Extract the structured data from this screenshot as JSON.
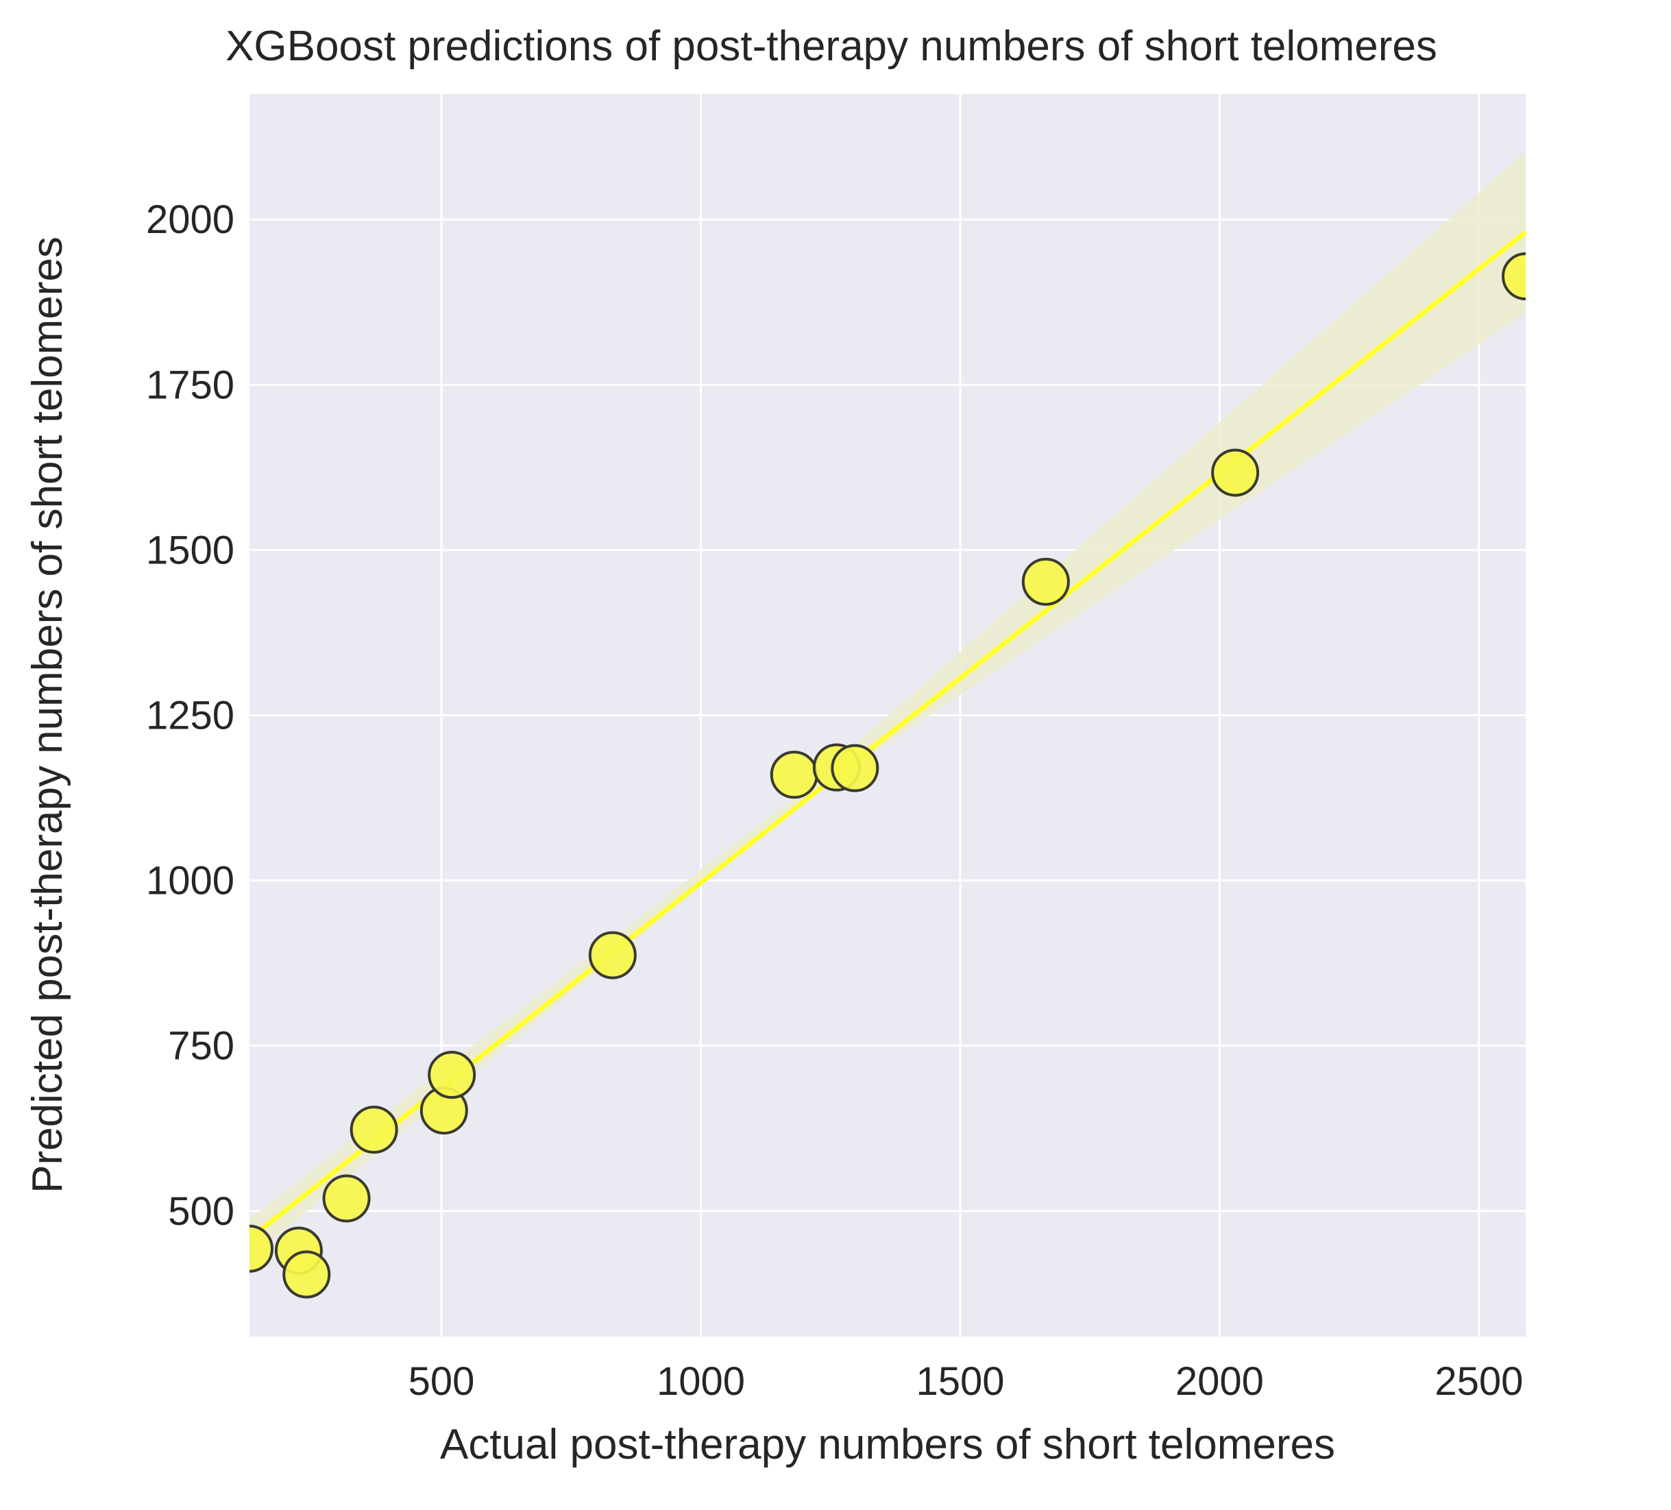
{
  "chart_data": {
    "type": "scatter",
    "title": "XGBoost predictions of post-therapy numbers of short telomeres",
    "xlabel": "Actual post-therapy numbers of short telomeres",
    "ylabel": "Predicted post-therapy numbers of short telomeres",
    "xlim": [
      130,
      2590
    ],
    "ylim": [
      310,
      2190
    ],
    "xticks": [
      500,
      1000,
      1500,
      2000,
      2500
    ],
    "yticks": [
      500,
      750,
      1000,
      1250,
      1500,
      1750,
      2000
    ],
    "grid": true,
    "legend": "none",
    "points": [
      {
        "x": 130,
        "y": 443
      },
      {
        "x": 225,
        "y": 440
      },
      {
        "x": 240,
        "y": 404
      },
      {
        "x": 317,
        "y": 519
      },
      {
        "x": 370,
        "y": 623
      },
      {
        "x": 505,
        "y": 652
      },
      {
        "x": 520,
        "y": 706
      },
      {
        "x": 830,
        "y": 887
      },
      {
        "x": 1180,
        "y": 1160
      },
      {
        "x": 1262,
        "y": 1171
      },
      {
        "x": 1297,
        "y": 1170
      },
      {
        "x": 1665,
        "y": 1452
      },
      {
        "x": 2030,
        "y": 1617
      },
      {
        "x": 2590,
        "y": 1914
      }
    ],
    "regression": {
      "x": [
        130,
        2590
      ],
      "y": [
        458,
        1981
      ]
    },
    "confidence_band": {
      "x": [
        130,
        1200,
        2590
      ],
      "upper": [
        488,
        1138,
        2103
      ],
      "lower": [
        428,
        1122,
        1859
      ]
    },
    "colors": {
      "background": "#eaeaf2",
      "grid": "#ffffff",
      "point_fill": "#f6f64a",
      "point_edge": "#3a3a30",
      "line": "#ffff2a",
      "band": "#ececcc"
    }
  }
}
